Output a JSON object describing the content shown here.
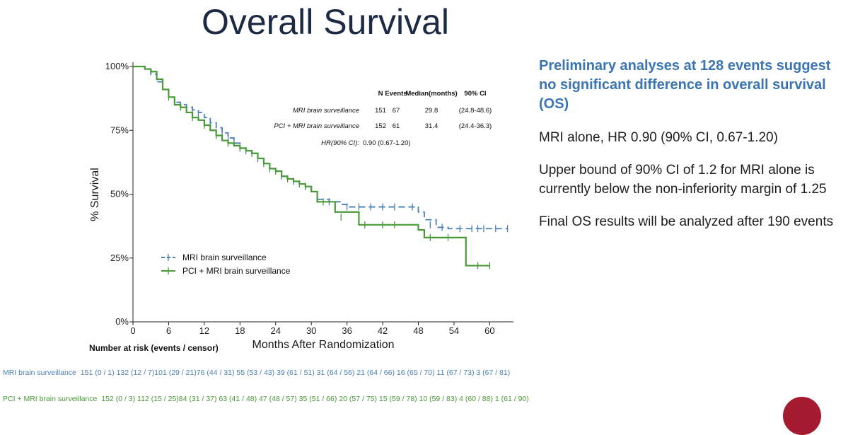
{
  "slide": {
    "title": "Overall Survival"
  },
  "panel": {
    "headline": "Preliminary analyses at 128 events suggest no significant difference in overall survival (OS)",
    "bullets": [
      "MRI alone, HR 0.90 (90% CI, 0.67-1.20)",
      "Upper bound of 90% CI of 1.2 for MRI alone is currently below the non-inferiority margin of 1.25",
      "Final OS results will be analyzed after 190 events"
    ]
  },
  "chart_data": {
    "type": "line",
    "xlabel": "Months After Randomization",
    "ylabel": "% Survival",
    "xlim": [
      0,
      64
    ],
    "ylim": [
      0,
      100
    ],
    "x_ticks": [
      0,
      6,
      12,
      18,
      24,
      30,
      36,
      42,
      48,
      54,
      60
    ],
    "y_ticks": [
      0,
      25,
      50,
      75,
      100
    ],
    "y_tick_labels": [
      "0%",
      "25%",
      "50%",
      "75%",
      "100%"
    ],
    "legend_position": "bottom-left",
    "series": [
      {
        "name": "MRI brain surveillance",
        "color": "#4a7fb3",
        "dashed": true,
        "steps": [
          [
            0,
            100
          ],
          [
            2,
            99
          ],
          [
            3,
            97
          ],
          [
            4,
            94
          ],
          [
            5,
            91
          ],
          [
            6,
            88
          ],
          [
            7,
            86
          ],
          [
            8,
            85
          ],
          [
            9,
            84
          ],
          [
            10,
            83
          ],
          [
            11,
            82
          ],
          [
            12,
            80
          ],
          [
            13,
            78
          ],
          [
            14,
            76
          ],
          [
            15,
            74
          ],
          [
            16,
            72
          ],
          [
            17,
            70
          ],
          [
            18,
            68
          ],
          [
            19,
            67
          ],
          [
            20,
            66
          ],
          [
            21,
            64
          ],
          [
            22,
            62
          ],
          [
            23,
            60
          ],
          [
            24,
            59
          ],
          [
            25,
            57
          ],
          [
            26,
            56
          ],
          [
            27,
            55
          ],
          [
            28,
            54
          ],
          [
            29,
            53
          ],
          [
            30,
            51
          ],
          [
            31,
            48
          ],
          [
            33,
            47
          ],
          [
            35,
            46
          ],
          [
            36,
            45
          ],
          [
            38,
            45
          ],
          [
            46,
            45
          ],
          [
            48,
            43
          ],
          [
            49,
            40
          ],
          [
            51,
            37
          ],
          [
            53,
            36.5
          ],
          [
            63,
            36.5
          ]
        ],
        "censors": [
          [
            3,
            98
          ],
          [
            7,
            86
          ],
          [
            9,
            84
          ],
          [
            10,
            83
          ],
          [
            11,
            81
          ],
          [
            13,
            77
          ],
          [
            15,
            74
          ],
          [
            16,
            72
          ],
          [
            17,
            70
          ],
          [
            19,
            67
          ],
          [
            21,
            64
          ],
          [
            23,
            60
          ],
          [
            25,
            57
          ],
          [
            27,
            55
          ],
          [
            29,
            53
          ],
          [
            31,
            48
          ],
          [
            33,
            47
          ],
          [
            36,
            45
          ],
          [
            38,
            45
          ],
          [
            40,
            45
          ],
          [
            42,
            45
          ],
          [
            44,
            45
          ],
          [
            47,
            45
          ],
          [
            50,
            38
          ],
          [
            52,
            37
          ],
          [
            55,
            36.5
          ],
          [
            57,
            36.5
          ],
          [
            58,
            36.5
          ],
          [
            59,
            36.5
          ],
          [
            61,
            36.5
          ],
          [
            63,
            36.5
          ]
        ]
      },
      {
        "name": "PCI + MRI brain surveillance",
        "color": "#4a9a3a",
        "dashed": false,
        "steps": [
          [
            0,
            100
          ],
          [
            2,
            99
          ],
          [
            3,
            98
          ],
          [
            4,
            95
          ],
          [
            5,
            91
          ],
          [
            6,
            88
          ],
          [
            7,
            85
          ],
          [
            8,
            84
          ],
          [
            9,
            82
          ],
          [
            10,
            80
          ],
          [
            11,
            79
          ],
          [
            12,
            77
          ],
          [
            13,
            75
          ],
          [
            14,
            73
          ],
          [
            15,
            71
          ],
          [
            16,
            70
          ],
          [
            17,
            69
          ],
          [
            18,
            68
          ],
          [
            19,
            67
          ],
          [
            20,
            66
          ],
          [
            21,
            64
          ],
          [
            22,
            62
          ],
          [
            23,
            60
          ],
          [
            24,
            59
          ],
          [
            25,
            57
          ],
          [
            26,
            56
          ],
          [
            27,
            55
          ],
          [
            28,
            54
          ],
          [
            29,
            53
          ],
          [
            30,
            51
          ],
          [
            31,
            47
          ],
          [
            33,
            47
          ],
          [
            34,
            43
          ],
          [
            38,
            38
          ],
          [
            45,
            38
          ],
          [
            48,
            36
          ],
          [
            49,
            33
          ],
          [
            54,
            33
          ],
          [
            56,
            22
          ],
          [
            57,
            22
          ],
          [
            60,
            22
          ]
        ],
        "censors": [
          [
            4,
            96
          ],
          [
            6,
            88
          ],
          [
            8,
            84
          ],
          [
            10,
            80
          ],
          [
            12,
            77
          ],
          [
            14,
            73
          ],
          [
            16,
            70
          ],
          [
            18,
            68
          ],
          [
            20,
            66
          ],
          [
            22,
            62
          ],
          [
            24,
            59
          ],
          [
            26,
            56
          ],
          [
            28,
            54
          ],
          [
            29,
            53
          ],
          [
            32,
            47
          ],
          [
            35,
            41
          ],
          [
            39,
            38
          ],
          [
            42,
            38
          ],
          [
            44,
            38
          ],
          [
            50,
            33
          ],
          [
            53,
            33
          ],
          [
            58,
            22
          ],
          [
            60,
            22
          ]
        ]
      }
    ],
    "summary_table": {
      "headers": [
        "N",
        "Events",
        "Median(months)",
        "90% CI"
      ],
      "rows": [
        {
          "label": "MRI brain surveillance",
          "n": "151",
          "events": "67",
          "median": "29.8",
          "ci": "(24.8-48.6)"
        },
        {
          "label": "PCI + MRI brain surveillance",
          "n": "152",
          "events": "61",
          "median": "31.4",
          "ci": "(24.4-36.3)"
        }
      ],
      "hr_label": "HR(90% CI):",
      "hr_value": "0.90 (0.67-1.20)"
    },
    "risk_table": {
      "title": "Number at risk (events / censor)",
      "rows": [
        {
          "name": "MRI brain surveillance",
          "values": "151 (0 / 1)  132 (12 / 7)101 (29 / 21)76 (44 / 31) 55 (53 / 43) 39 (61 / 51) 31 (64 / 56) 21 (64 / 66) 16 (65 / 70) 11 (67 / 73)   3 (67 / 81)"
        },
        {
          "name": "PCI + MRI brain surveillance",
          "values": "152 (0 / 3) 112 (15 / 25)84 (31 / 37) 63 (41 / 48) 47 (48 / 57) 35 (51 / 66) 20 (57 / 75) 15 (59 / 78) 10 (59 / 83)   4 (60 / 88)   1 (61 / 90)"
        }
      ]
    }
  }
}
